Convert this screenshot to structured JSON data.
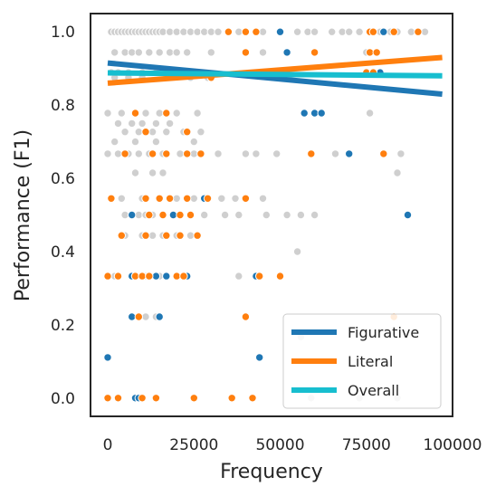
{
  "chart_data": {
    "type": "scatter",
    "title": "",
    "xlabel": "Frequency",
    "ylabel": "Performance (F1)",
    "xlim": [
      -5000,
      100000
    ],
    "ylim": [
      -0.05,
      1.05
    ],
    "xticks": [
      0,
      25000,
      50000,
      75000,
      100000
    ],
    "xtick_labels": [
      "0",
      "25000",
      "50000",
      "75000",
      "100000"
    ],
    "yticks": [
      0.0,
      0.2,
      0.4,
      0.6,
      0.8,
      1.0
    ],
    "ytick_labels": [
      "0.0",
      "0.2",
      "0.4",
      "0.6",
      "0.8",
      "1.0"
    ],
    "grid": false,
    "legend_position": "bottom-right",
    "scatter_series": [
      {
        "key": "other",
        "color": "#cfcfcf",
        "points": [
          [
            1000,
            1.0
          ],
          [
            2000,
            1.0
          ],
          [
            3000,
            1.0
          ],
          [
            4000,
            1.0
          ],
          [
            5000,
            1.0
          ],
          [
            6000,
            1.0
          ],
          [
            7000,
            1.0
          ],
          [
            8000,
            1.0
          ],
          [
            9000,
            1.0
          ],
          [
            10000,
            1.0
          ],
          [
            11000,
            1.0
          ],
          [
            12000,
            1.0
          ],
          [
            13000,
            1.0
          ],
          [
            14000,
            1.0
          ],
          [
            15000,
            1.0
          ],
          [
            16000,
            1.0
          ],
          [
            18000,
            1.0
          ],
          [
            20000,
            1.0
          ],
          [
            22000,
            1.0
          ],
          [
            24000,
            1.0
          ],
          [
            26000,
            1.0
          ],
          [
            28000,
            1.0
          ],
          [
            30000,
            1.0
          ],
          [
            32000,
            1.0
          ],
          [
            35000,
            1.0
          ],
          [
            38000,
            1.0
          ],
          [
            40000,
            1.0
          ],
          [
            45000,
            1.0
          ],
          [
            55000,
            1.0
          ],
          [
            58000,
            1.0
          ],
          [
            60000,
            1.0
          ],
          [
            65000,
            1.0
          ],
          [
            68000,
            1.0
          ],
          [
            70000,
            1.0
          ],
          [
            73000,
            1.0
          ],
          [
            79000,
            1.0
          ],
          [
            82000,
            1.0
          ],
          [
            84000,
            1.0
          ],
          [
            88000,
            1.0
          ],
          [
            92000,
            1.0
          ],
          [
            2000,
            0.944
          ],
          [
            5000,
            0.944
          ],
          [
            7000,
            0.944
          ],
          [
            9000,
            0.944
          ],
          [
            12000,
            0.944
          ],
          [
            15000,
            0.944
          ],
          [
            18000,
            0.944
          ],
          [
            20000,
            0.944
          ],
          [
            23000,
            0.944
          ],
          [
            30000,
            0.944
          ],
          [
            45000,
            0.944
          ],
          [
            75000,
            0.944
          ],
          [
            78000,
            0.944
          ],
          [
            1000,
            0.889
          ],
          [
            3000,
            0.889
          ],
          [
            6000,
            0.889
          ],
          [
            10000,
            0.889
          ],
          [
            14000,
            0.889
          ],
          [
            19000,
            0.889
          ],
          [
            25000,
            0.889
          ],
          [
            75000,
            0.889
          ],
          [
            2000,
            0.875
          ],
          [
            6000,
            0.875
          ],
          [
            10000,
            0.875
          ],
          [
            17000,
            0.875
          ],
          [
            24000,
            0.875
          ],
          [
            29000,
            0.875
          ],
          [
            0,
            0.778
          ],
          [
            4000,
            0.778
          ],
          [
            8000,
            0.778
          ],
          [
            11000,
            0.778
          ],
          [
            15000,
            0.778
          ],
          [
            20000,
            0.778
          ],
          [
            26000,
            0.778
          ],
          [
            62000,
            0.778
          ],
          [
            76000,
            0.778
          ],
          [
            3000,
            0.75
          ],
          [
            7000,
            0.75
          ],
          [
            10000,
            0.75
          ],
          [
            14000,
            0.75
          ],
          [
            18000,
            0.75
          ],
          [
            5000,
            0.727
          ],
          [
            9000,
            0.727
          ],
          [
            13000,
            0.727
          ],
          [
            17000,
            0.727
          ],
          [
            22000,
            0.727
          ],
          [
            27000,
            0.727
          ],
          [
            2000,
            0.7
          ],
          [
            8000,
            0.7
          ],
          [
            14000,
            0.7
          ],
          [
            25000,
            0.7
          ],
          [
            0,
            0.667
          ],
          [
            3000,
            0.667
          ],
          [
            6000,
            0.667
          ],
          [
            9000,
            0.667
          ],
          [
            12000,
            0.667
          ],
          [
            16000,
            0.667
          ],
          [
            21000,
            0.667
          ],
          [
            25000,
            0.667
          ],
          [
            32000,
            0.667
          ],
          [
            40000,
            0.667
          ],
          [
            43000,
            0.667
          ],
          [
            49000,
            0.667
          ],
          [
            66000,
            0.667
          ],
          [
            80000,
            0.667
          ],
          [
            85000,
            0.667
          ],
          [
            8000,
            0.615
          ],
          [
            13000,
            0.615
          ],
          [
            16000,
            0.615
          ],
          [
            84000,
            0.615
          ],
          [
            1000,
            0.545
          ],
          [
            4000,
            0.545
          ],
          [
            10000,
            0.545
          ],
          [
            20000,
            0.545
          ],
          [
            25000,
            0.545
          ],
          [
            29000,
            0.545
          ],
          [
            33000,
            0.545
          ],
          [
            37000,
            0.545
          ],
          [
            45000,
            0.545
          ],
          [
            5000,
            0.5
          ],
          [
            7000,
            0.5
          ],
          [
            9000,
            0.5
          ],
          [
            11000,
            0.5
          ],
          [
            13000,
            0.5
          ],
          [
            16000,
            0.5
          ],
          [
            19000,
            0.5
          ],
          [
            21000,
            0.5
          ],
          [
            24000,
            0.5
          ],
          [
            28000,
            0.5
          ],
          [
            34000,
            0.5
          ],
          [
            38000,
            0.5
          ],
          [
            46000,
            0.5
          ],
          [
            52000,
            0.5
          ],
          [
            56000,
            0.5
          ],
          [
            60000,
            0.5
          ],
          [
            5000,
            0.444
          ],
          [
            10000,
            0.444
          ],
          [
            13000,
            0.444
          ],
          [
            16000,
            0.444
          ],
          [
            20000,
            0.444
          ],
          [
            24000,
            0.444
          ],
          [
            55000,
            0.4
          ],
          [
            2000,
            0.333
          ],
          [
            8000,
            0.333
          ],
          [
            11000,
            0.333
          ],
          [
            15000,
            0.333
          ],
          [
            17000,
            0.333
          ],
          [
            20000,
            0.333
          ],
          [
            23000,
            0.333
          ],
          [
            38000,
            0.333
          ],
          [
            43000,
            0.333
          ],
          [
            11000,
            0.222
          ],
          [
            14000,
            0.222
          ],
          [
            56000,
            0.167
          ],
          [
            59000,
            0.0
          ],
          [
            73000,
            0.0
          ],
          [
            84000,
            0.0
          ]
        ]
      },
      {
        "key": "Figurative",
        "color": "#1f77b4",
        "points": [
          [
            50000,
            1.0
          ],
          [
            80000,
            1.0
          ],
          [
            52000,
            0.944
          ],
          [
            79000,
            0.889
          ],
          [
            57000,
            0.778
          ],
          [
            60000,
            0.778
          ],
          [
            62000,
            0.778
          ],
          [
            70000,
            0.667
          ],
          [
            28000,
            0.545
          ],
          [
            7000,
            0.5
          ],
          [
            19000,
            0.5
          ],
          [
            87000,
            0.5
          ],
          [
            7000,
            0.333
          ],
          [
            14000,
            0.333
          ],
          [
            17000,
            0.333
          ],
          [
            23000,
            0.333
          ],
          [
            43000,
            0.333
          ],
          [
            7000,
            0.222
          ],
          [
            15000,
            0.222
          ],
          [
            0,
            0.111
          ],
          [
            44000,
            0.111
          ],
          [
            8000,
            0.0
          ],
          [
            9000,
            0.0
          ]
        ]
      },
      {
        "key": "Literal",
        "color": "#ff7f0e",
        "points": [
          [
            35000,
            1.0
          ],
          [
            40000,
            1.0
          ],
          [
            43000,
            1.0
          ],
          [
            76000,
            1.0
          ],
          [
            77000,
            1.0
          ],
          [
            83000,
            1.0
          ],
          [
            90000,
            1.0
          ],
          [
            40000,
            0.944
          ],
          [
            60000,
            0.944
          ],
          [
            76000,
            0.944
          ],
          [
            78000,
            0.944
          ],
          [
            75000,
            0.889
          ],
          [
            77000,
            0.889
          ],
          [
            30000,
            0.875
          ],
          [
            8000,
            0.778
          ],
          [
            17000,
            0.778
          ],
          [
            11000,
            0.727
          ],
          [
            23000,
            0.727
          ],
          [
            5000,
            0.667
          ],
          [
            13000,
            0.667
          ],
          [
            17000,
            0.667
          ],
          [
            23000,
            0.667
          ],
          [
            27000,
            0.667
          ],
          [
            59000,
            0.667
          ],
          [
            80000,
            0.667
          ],
          [
            1000,
            0.545
          ],
          [
            11000,
            0.545
          ],
          [
            15000,
            0.545
          ],
          [
            18000,
            0.545
          ],
          [
            23000,
            0.545
          ],
          [
            29000,
            0.545
          ],
          [
            40000,
            0.545
          ],
          [
            12000,
            0.5
          ],
          [
            16000,
            0.5
          ],
          [
            21000,
            0.5
          ],
          [
            24000,
            0.5
          ],
          [
            4000,
            0.444
          ],
          [
            11000,
            0.444
          ],
          [
            17000,
            0.444
          ],
          [
            21000,
            0.444
          ],
          [
            26000,
            0.444
          ],
          [
            0,
            0.333
          ],
          [
            3000,
            0.333
          ],
          [
            8000,
            0.333
          ],
          [
            10000,
            0.333
          ],
          [
            12000,
            0.333
          ],
          [
            20000,
            0.333
          ],
          [
            22000,
            0.333
          ],
          [
            44000,
            0.333
          ],
          [
            50000,
            0.333
          ],
          [
            9000,
            0.222
          ],
          [
            40000,
            0.222
          ],
          [
            83000,
            0.222
          ],
          [
            0,
            0.0
          ],
          [
            3000,
            0.0
          ],
          [
            10000,
            0.0
          ],
          [
            14000,
            0.0
          ],
          [
            25000,
            0.0
          ],
          [
            36000,
            0.0
          ],
          [
            42000,
            0.0
          ]
        ]
      }
    ],
    "trend_lines": [
      {
        "name": "Figurative",
        "color": "#1f77b4",
        "x": [
          0,
          97000
        ],
        "y": [
          0.915,
          0.83
        ]
      },
      {
        "name": "Literal",
        "color": "#ff7f0e",
        "x": [
          0,
          97000
        ],
        "y": [
          0.86,
          0.93
        ]
      },
      {
        "name": "Overall",
        "color": "#17becf",
        "x": [
          0,
          97000
        ],
        "y": [
          0.888,
          0.88
        ]
      }
    ],
    "legend": [
      {
        "label": "Figurative",
        "color": "#1f77b4"
      },
      {
        "label": "Literal",
        "color": "#ff7f0e"
      },
      {
        "label": "Overall",
        "color": "#17becf"
      }
    ]
  }
}
